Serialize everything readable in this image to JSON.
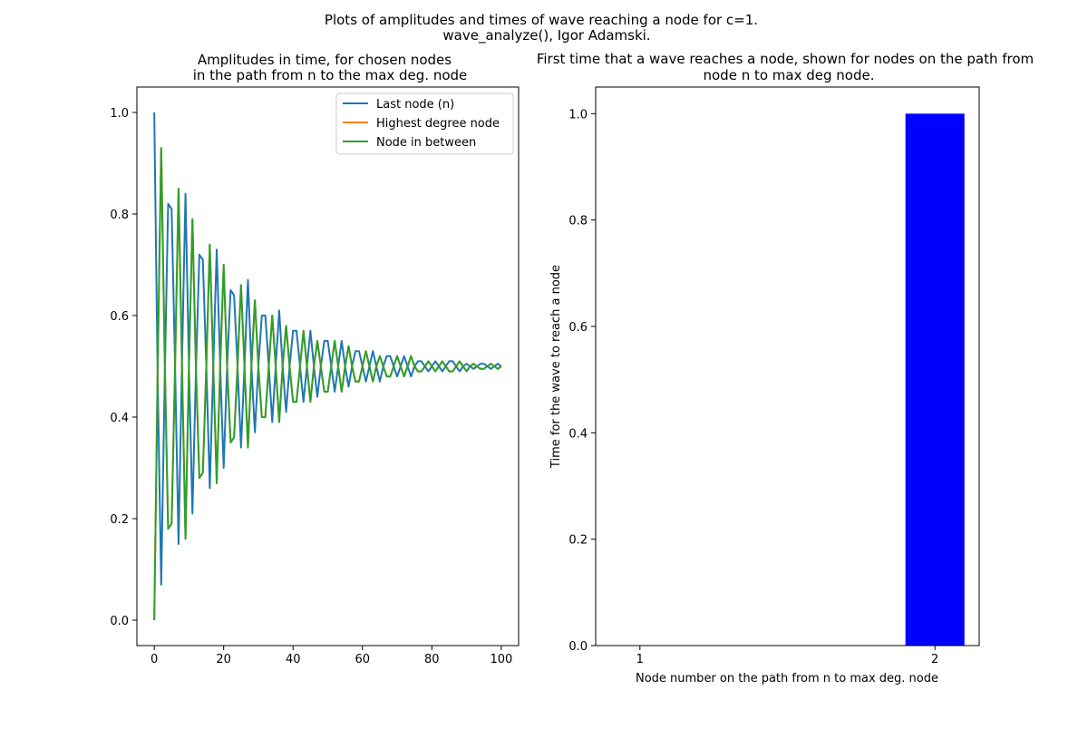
{
  "figure": {
    "suptitle_line1": "Plots of amplitudes and times of wave reaching a node for c=1.",
    "suptitle_line2": "wave_analyze(), Igor Adamski."
  },
  "chart_data": [
    {
      "type": "line",
      "title_line1": "Amplitudes in time, for chosen nodes",
      "title_line2": "in the path from n to the max deg. node",
      "xlabel": "",
      "ylabel": "",
      "xlim": [
        -5,
        105
      ],
      "ylim": [
        -0.05,
        1.05
      ],
      "xticks": [
        0,
        20,
        40,
        60,
        80,
        100
      ],
      "yticks": [
        0.0,
        0.2,
        0.4,
        0.6,
        0.8,
        1.0
      ],
      "legend_position": "upper right",
      "series": [
        {
          "name": "Last node (n)",
          "color": "#1f77b4",
          "x": [
            0,
            1,
            2,
            3,
            4,
            5,
            6,
            7,
            8,
            9,
            10,
            11,
            12,
            13,
            14,
            15,
            16,
            17,
            18,
            19,
            20,
            21,
            22,
            23,
            24,
            25,
            26,
            27,
            28,
            29,
            30,
            31,
            32,
            33,
            34,
            35,
            36,
            37,
            38,
            39,
            40,
            41,
            42,
            43,
            44,
            45,
            46,
            47,
            48,
            49,
            50,
            51,
            52,
            53,
            54,
            55,
            56,
            57,
            58,
            59,
            60,
            61,
            62,
            63,
            64,
            65,
            66,
            67,
            68,
            69,
            70,
            71,
            72,
            73,
            74,
            75,
            76,
            77,
            78,
            79,
            80,
            81,
            82,
            83,
            84,
            85,
            86,
            87,
            88,
            89,
            90,
            91,
            92,
            93,
            94,
            95,
            96,
            97,
            98,
            99,
            100
          ],
          "y": [
            1.0,
            0.47,
            0.07,
            0.47,
            0.82,
            0.81,
            0.5,
            0.15,
            0.51,
            0.84,
            0.5,
            0.21,
            0.49,
            0.72,
            0.71,
            0.5,
            0.26,
            0.5,
            0.73,
            0.5,
            0.3,
            0.5,
            0.65,
            0.64,
            0.5,
            0.34,
            0.5,
            0.67,
            0.5,
            0.37,
            0.5,
            0.6,
            0.6,
            0.5,
            0.39,
            0.5,
            0.61,
            0.5,
            0.41,
            0.5,
            0.57,
            0.57,
            0.5,
            0.43,
            0.5,
            0.57,
            0.5,
            0.44,
            0.5,
            0.55,
            0.55,
            0.5,
            0.45,
            0.5,
            0.55,
            0.5,
            0.46,
            0.5,
            0.53,
            0.53,
            0.5,
            0.47,
            0.5,
            0.53,
            0.5,
            0.47,
            0.5,
            0.52,
            0.52,
            0.5,
            0.48,
            0.5,
            0.52,
            0.5,
            0.48,
            0.5,
            0.51,
            0.51,
            0.5,
            0.49,
            0.5,
            0.51,
            0.5,
            0.49,
            0.5,
            0.51,
            0.51,
            0.5,
            0.49,
            0.5,
            0.505,
            0.5,
            0.495,
            0.5,
            0.505,
            0.505,
            0.5,
            0.495,
            0.5,
            0.505,
            0.5
          ]
        },
        {
          "name": "Highest degree node",
          "color": "#ff7f0e",
          "x": [
            0,
            1,
            2,
            3,
            4,
            5,
            6,
            7,
            8,
            9,
            10,
            11,
            12,
            13,
            14,
            15,
            16,
            17,
            18,
            19,
            20,
            21,
            22,
            23,
            24,
            25,
            26,
            27,
            28,
            29,
            30,
            31,
            32,
            33,
            34,
            35,
            36,
            37,
            38,
            39,
            40,
            41,
            42,
            43,
            44,
            45,
            46,
            47,
            48,
            49,
            50,
            51,
            52,
            53,
            54,
            55,
            56,
            57,
            58,
            59,
            60,
            61,
            62,
            63,
            64,
            65,
            66,
            67,
            68,
            69,
            70,
            71,
            72,
            73,
            74,
            75,
            76,
            77,
            78,
            79,
            80,
            81,
            82,
            83,
            84,
            85,
            86,
            87,
            88,
            89,
            90,
            91,
            92,
            93,
            94,
            95,
            96,
            97,
            98,
            99,
            100
          ],
          "y": [
            0.0,
            0.5,
            0.93,
            0.52,
            0.18,
            0.19,
            0.5,
            0.85,
            0.5,
            0.16,
            0.5,
            0.79,
            0.5,
            0.28,
            0.29,
            0.5,
            0.74,
            0.5,
            0.27,
            0.5,
            0.7,
            0.5,
            0.35,
            0.36,
            0.5,
            0.66,
            0.5,
            0.34,
            0.5,
            0.63,
            0.5,
            0.4,
            0.4,
            0.5,
            0.6,
            0.5,
            0.39,
            0.5,
            0.58,
            0.5,
            0.43,
            0.43,
            0.5,
            0.57,
            0.5,
            0.43,
            0.5,
            0.55,
            0.5,
            0.45,
            0.45,
            0.5,
            0.55,
            0.5,
            0.45,
            0.5,
            0.54,
            0.5,
            0.47,
            0.47,
            0.5,
            0.53,
            0.5,
            0.47,
            0.5,
            0.52,
            0.5,
            0.48,
            0.48,
            0.5,
            0.52,
            0.5,
            0.48,
            0.5,
            0.52,
            0.5,
            0.49,
            0.49,
            0.5,
            0.51,
            0.5,
            0.49,
            0.5,
            0.51,
            0.5,
            0.49,
            0.49,
            0.5,
            0.51,
            0.5,
            0.49,
            0.5,
            0.505,
            0.5,
            0.495,
            0.495,
            0.5,
            0.505,
            0.5,
            0.495,
            0.5
          ]
        },
        {
          "name": "Node in between",
          "color": "#2ca02c",
          "x": [
            0,
            1,
            2,
            3,
            4,
            5,
            6,
            7,
            8,
            9,
            10,
            11,
            12,
            13,
            14,
            15,
            16,
            17,
            18,
            19,
            20,
            21,
            22,
            23,
            24,
            25,
            26,
            27,
            28,
            29,
            30,
            31,
            32,
            33,
            34,
            35,
            36,
            37,
            38,
            39,
            40,
            41,
            42,
            43,
            44,
            45,
            46,
            47,
            48,
            49,
            50,
            51,
            52,
            53,
            54,
            55,
            56,
            57,
            58,
            59,
            60,
            61,
            62,
            63,
            64,
            65,
            66,
            67,
            68,
            69,
            70,
            71,
            72,
            73,
            74,
            75,
            76,
            77,
            78,
            79,
            80,
            81,
            82,
            83,
            84,
            85,
            86,
            87,
            88,
            89,
            90,
            91,
            92,
            93,
            94,
            95,
            96,
            97,
            98,
            99,
            100
          ],
          "y": [
            0.0,
            0.5,
            0.93,
            0.52,
            0.18,
            0.19,
            0.5,
            0.85,
            0.5,
            0.16,
            0.5,
            0.79,
            0.5,
            0.28,
            0.29,
            0.5,
            0.74,
            0.5,
            0.27,
            0.5,
            0.7,
            0.5,
            0.35,
            0.36,
            0.5,
            0.66,
            0.5,
            0.34,
            0.5,
            0.63,
            0.5,
            0.4,
            0.4,
            0.5,
            0.6,
            0.5,
            0.39,
            0.5,
            0.58,
            0.5,
            0.43,
            0.43,
            0.5,
            0.57,
            0.5,
            0.43,
            0.5,
            0.55,
            0.5,
            0.45,
            0.45,
            0.5,
            0.55,
            0.5,
            0.45,
            0.5,
            0.54,
            0.5,
            0.47,
            0.47,
            0.5,
            0.53,
            0.5,
            0.47,
            0.5,
            0.52,
            0.5,
            0.48,
            0.48,
            0.5,
            0.52,
            0.5,
            0.48,
            0.5,
            0.52,
            0.5,
            0.49,
            0.49,
            0.5,
            0.51,
            0.5,
            0.49,
            0.5,
            0.51,
            0.5,
            0.49,
            0.49,
            0.5,
            0.51,
            0.5,
            0.49,
            0.5,
            0.505,
            0.5,
            0.495,
            0.495,
            0.5,
            0.505,
            0.5,
            0.495,
            0.5
          ]
        }
      ]
    },
    {
      "type": "bar",
      "title_line1": "First time that a wave reaches a node, shown for nodes on the path from",
      "title_line2": "node n to max deg node.",
      "xlabel": "Node number on the path from n to max deg. node",
      "ylabel": "Time for the wave to reach a node",
      "categories": [
        "1",
        "2"
      ],
      "values": [
        0,
        1.0
      ],
      "bar_color": "#0000ff",
      "xlim": [
        0.85,
        2.15
      ],
      "ylim": [
        0.0,
        1.05
      ],
      "yticks": [
        0.0,
        0.2,
        0.4,
        0.6,
        0.8,
        1.0
      ]
    }
  ]
}
